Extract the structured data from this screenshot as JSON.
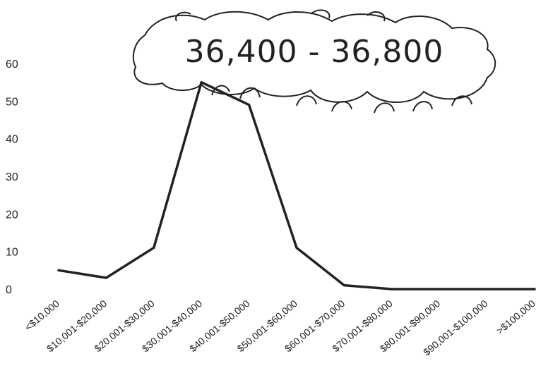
{
  "chart_data": {
    "type": "line",
    "title": "",
    "xlabel": "",
    "ylabel": "",
    "categories": [
      "<$10,000",
      "$10,001-$20,000",
      "$20,001-$30,000",
      "$30,001-$40,000",
      "$40,001-$50,000",
      "$50,001-$60,000",
      "$60,001-$70,000",
      "$70,001-$80,000",
      "$80,001-$90,000",
      "$90,001-$100,000",
      ">$100,000"
    ],
    "series": [
      {
        "values": [
          5,
          3,
          11,
          55,
          49,
          11,
          1,
          0,
          0,
          0,
          0
        ],
        "color": "#222222"
      }
    ],
    "ylim": [
      0,
      60
    ],
    "yticks": [
      0,
      10,
      20,
      30,
      40,
      50,
      60
    ],
    "grid": false,
    "legend": "none",
    "annotation": {
      "text": "36,400 - 36,800",
      "style": "hand-drawn cloud"
    }
  }
}
